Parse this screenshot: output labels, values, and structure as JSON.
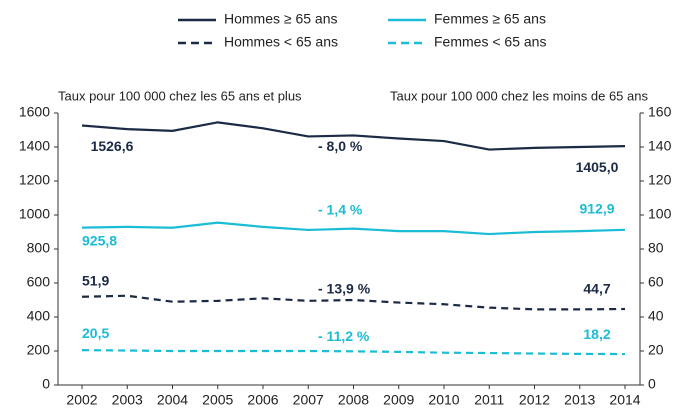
{
  "chart_data": {
    "type": "line",
    "y_axis_title": "Taux pour 100 000 chez les 65 ans et plus",
    "y2_axis_title": "Taux pour 100 000 chez les moins de 65 ans",
    "categories": [
      "2002",
      "2003",
      "2004",
      "2005",
      "2006",
      "2007",
      "2008",
      "2009",
      "2010",
      "2011",
      "2012",
      "2013",
      "2014"
    ],
    "ylim": [
      0,
      1600
    ],
    "yticks": [
      0,
      200,
      400,
      600,
      800,
      1000,
      1200,
      1400,
      1600
    ],
    "y2lim": [
      0,
      160
    ],
    "y2ticks": [
      0,
      20,
      40,
      60,
      80,
      100,
      120,
      140,
      160
    ],
    "series": [
      {
        "name": "Hommes ≥ 65 ans",
        "color": "#1b2a45",
        "dash": false,
        "values": [
          1526.6,
          1505,
          1495,
          1545,
          1510,
          1462,
          1468,
          1450,
          1435,
          1385,
          1395,
          1400,
          1405.0
        ],
        "value_labels": [
          "1526,6",
          null,
          null,
          null,
          null,
          null,
          null,
          null,
          null,
          null,
          null,
          null,
          "1405,0"
        ],
        "change": "- 8,0 %"
      },
      {
        "name": "Femmes ≥ 65 ans",
        "color": "#1bbcd6",
        "dash": false,
        "values": [
          925.8,
          930,
          925,
          955,
          930,
          912,
          920,
          905,
          905,
          888,
          900,
          905,
          912.9
        ],
        "value_labels": [
          "925,8",
          null,
          null,
          null,
          null,
          null,
          null,
          null,
          null,
          null,
          null,
          null,
          "912,9"
        ],
        "change": "- 1,4 %"
      },
      {
        "name": "Hommes < 65 ans",
        "color": "#1b2a45",
        "dash": true,
        "axis": "y2",
        "values": [
          51.9,
          52.5,
          49,
          49.5,
          51,
          49.5,
          50,
          48.5,
          47.5,
          45.5,
          44.5,
          44.5,
          44.7
        ],
        "value_labels": [
          "51,9",
          null,
          null,
          null,
          null,
          null,
          null,
          null,
          null,
          null,
          null,
          null,
          "44,7"
        ],
        "change": "- 13,9 %"
      },
      {
        "name": "Femmes < 65 ans",
        "color": "#1bbcd6",
        "dash": true,
        "axis": "y2",
        "values": [
          20.5,
          20.3,
          20,
          20,
          20,
          20,
          19.8,
          19.5,
          19,
          18.8,
          18.5,
          18.3,
          18.2
        ],
        "value_labels": [
          "20,5",
          null,
          null,
          null,
          null,
          null,
          null,
          null,
          null,
          null,
          null,
          null,
          "18,2"
        ],
        "change": "- 11,2 %"
      }
    ]
  }
}
